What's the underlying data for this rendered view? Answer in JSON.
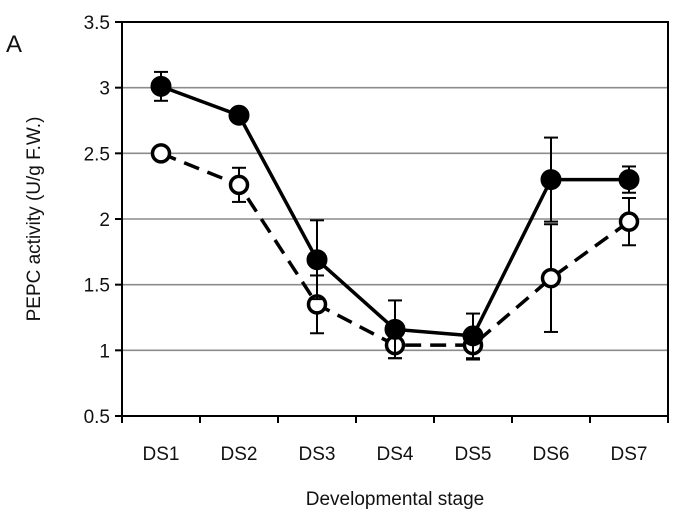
{
  "chart_data": {
    "type": "line",
    "panel_label": "A",
    "xlabel": "Developmental stage",
    "ylabel": "PEPC activity (U/g F.W.)",
    "categories": [
      "DS1",
      "DS2",
      "DS3",
      "DS4",
      "DS5",
      "DS6",
      "DS7"
    ],
    "ylim": [
      0.5,
      3.5
    ],
    "yticks": [
      "0.5",
      "1",
      "1.5",
      "2",
      "2.5",
      "3",
      "3.5"
    ],
    "grid": true,
    "series": [
      {
        "marker": "filled-circle",
        "line_style": "solid",
        "color": "#000000",
        "values": [
          3.01,
          2.79,
          1.69,
          1.16,
          1.11,
          2.3,
          2.3
        ],
        "errors": [
          0.11,
          0.03,
          0.3,
          0.22,
          0.17,
          0.32,
          0.1
        ]
      },
      {
        "marker": "open-circle",
        "line_style": "dashed",
        "color": "#000000",
        "values": [
          2.5,
          2.26,
          1.35,
          1.04,
          1.04,
          1.55,
          1.98
        ],
        "errors": [
          0.02,
          0.13,
          0.22,
          0.1,
          0.11,
          0.41,
          0.18
        ]
      }
    ]
  }
}
